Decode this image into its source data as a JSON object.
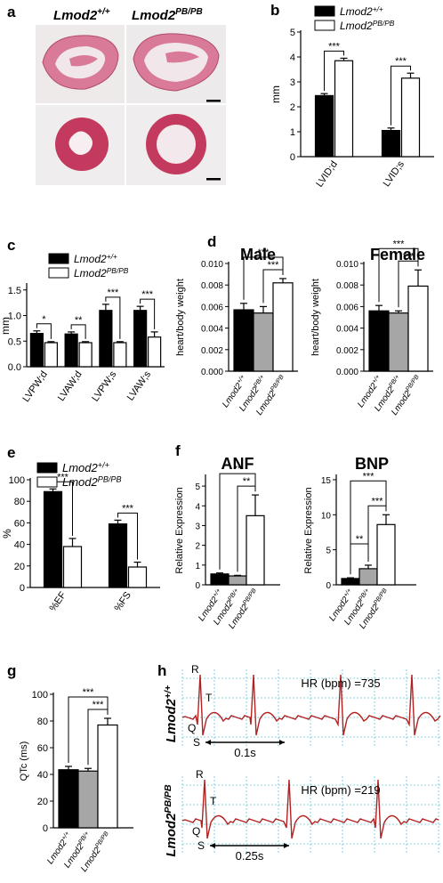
{
  "figure": {
    "panel_labels": [
      "a",
      "b",
      "c",
      "d",
      "e",
      "f",
      "g",
      "h"
    ],
    "colors": {
      "wt": "#000000",
      "het": "#a6a6a6",
      "mut": "#ffffff",
      "ecg": "#b22222",
      "grid": "#66c6d8",
      "heart_stain": "#d65a78",
      "section_stain": "#c43a5e"
    }
  },
  "panel_a": {
    "genotype_wt": "Lmod2",
    "genotype_wt_sup": "+/+",
    "genotype_mut": "Lmod2",
    "genotype_mut_sup": "PB/PB"
  },
  "chart_data": [
    {
      "panel": "b",
      "type": "bar",
      "categories": [
        "LVID;d",
        "LVID;s"
      ],
      "series": [
        {
          "name": "Lmod2+/+",
          "values": [
            2.45,
            1.05
          ],
          "errors": [
            0.08,
            0.1
          ]
        },
        {
          "name": "Lmod2PB/PB",
          "values": [
            3.85,
            3.15
          ],
          "errors": [
            0.1,
            0.2
          ]
        }
      ],
      "ylabel": "mm",
      "ylim": [
        0,
        5
      ],
      "yticks": [
        0,
        1,
        2,
        3,
        4,
        5
      ],
      "significance": [
        {
          "label": "***",
          "group": 0
        },
        {
          "label": "***",
          "group": 1
        }
      ],
      "legend_position": "top"
    },
    {
      "panel": "c",
      "type": "bar",
      "categories": [
        "LVPW;d",
        "LVAW;d",
        "LVPW;s",
        "LVAW;s"
      ],
      "series": [
        {
          "name": "Lmod2+/+",
          "values": [
            0.65,
            0.64,
            1.1,
            1.1
          ],
          "errors": [
            0.05,
            0.04,
            0.12,
            0.08
          ]
        },
        {
          "name": "Lmod2PB/PB",
          "values": [
            0.47,
            0.47,
            0.47,
            0.58
          ],
          "errors": [
            0.02,
            0.02,
            0.02,
            0.1
          ]
        }
      ],
      "ylabel": "mm",
      "ylim": [
        0,
        1.6
      ],
      "yticks": [
        0.0,
        0.5,
        1.0,
        1.5
      ],
      "significance": [
        {
          "label": "*",
          "group": 0
        },
        {
          "label": "**",
          "group": 1
        },
        {
          "label": "***",
          "group": 2
        },
        {
          "label": "***",
          "group": 3
        }
      ],
      "legend_position": "top"
    },
    {
      "panel": "d",
      "type": "bar",
      "title": "Male",
      "categories": [
        "Lmod2+/+",
        "Lmod2PB/+",
        "Lmod2PB/PB"
      ],
      "values": [
        0.0057,
        0.0054,
        0.0082
      ],
      "errors": [
        0.0006,
        0.0006,
        0.0004
      ],
      "ylabel": "heart/body weight",
      "ylim": [
        0,
        0.01
      ],
      "yticks": [
        "0.000",
        "0.002",
        "0.004",
        "0.006",
        "0.008",
        "0.010"
      ],
      "significance": [
        {
          "label": "***",
          "from": 0,
          "to": 2
        },
        {
          "label": "***",
          "from": 1,
          "to": 2
        }
      ]
    },
    {
      "panel": "d",
      "type": "bar",
      "title": "Female",
      "categories": [
        "Lmod2+/+",
        "Lmod2PB/+",
        "Lmod2PB/PB"
      ],
      "values": [
        0.0056,
        0.0054,
        0.0079
      ],
      "errors": [
        0.0005,
        0.0002,
        0.0015
      ],
      "ylabel": "heart/body weight",
      "ylim": [
        0,
        0.01
      ],
      "yticks": [
        "0.000",
        "0.002",
        "0.004",
        "0.006",
        "0.008",
        "0.010"
      ],
      "significance": [
        {
          "label": "***",
          "from": 0,
          "to": 2
        },
        {
          "label": "***",
          "from": 1,
          "to": 2
        }
      ]
    },
    {
      "panel": "e",
      "type": "bar",
      "categories": [
        "%EF",
        "%FS"
      ],
      "series": [
        {
          "name": "Lmod2+/+",
          "values": [
            89,
            59
          ],
          "errors": [
            2.5,
            3.5
          ]
        },
        {
          "name": "Lmod2PB/PB",
          "values": [
            38,
            19
          ],
          "errors": [
            7.5,
            4.5
          ]
        }
      ],
      "ylabel": "%",
      "ylim": [
        0,
        100
      ],
      "yticks": [
        0,
        20,
        40,
        60,
        80,
        100
      ],
      "significance": [
        {
          "label": "***",
          "group": 0
        },
        {
          "label": "***",
          "group": 1
        }
      ],
      "legend_position": "top"
    },
    {
      "panel": "f",
      "type": "bar",
      "title": "ANF",
      "categories": [
        "Lmod2+/+",
        "Lmod2PB/+",
        "Lmod2PB/PB"
      ],
      "values": [
        0.55,
        0.45,
        3.5
      ],
      "errors": [
        0.05,
        0.03,
        1.05
      ],
      "ylabel": "Relative Expression",
      "ylim": [
        0,
        5.5
      ],
      "yticks": [
        0,
        1,
        2,
        3,
        4,
        5
      ],
      "significance": [
        {
          "label": "**",
          "from": 0,
          "to": 2
        },
        {
          "label": "**",
          "from": 1,
          "to": 2
        }
      ]
    },
    {
      "panel": "f",
      "type": "bar",
      "title": "BNP",
      "categories": [
        "Lmod2+/+",
        "Lmod2PB/+",
        "Lmod2PB/PB"
      ],
      "values": [
        0.9,
        2.3,
        8.6
      ],
      "errors": [
        0.1,
        0.5,
        1.4
      ],
      "ylabel": "Relative Expression",
      "ylim": [
        0,
        15.5
      ],
      "yticks": [
        0,
        5,
        10,
        15
      ],
      "significance": [
        {
          "label": "**",
          "from": 0,
          "to": 1
        },
        {
          "label": "***",
          "from": 1,
          "to": 2
        },
        {
          "label": "***",
          "from": 0,
          "to": 2
        }
      ]
    },
    {
      "panel": "g",
      "type": "bar",
      "categories": [
        "Lmod2+/+",
        "Lmod2PB/+",
        "Lmod2PB/PB"
      ],
      "values": [
        43.5,
        42.5,
        77
      ],
      "errors": [
        2.5,
        2,
        5
      ],
      "ylabel": "QTc (ms)",
      "ylim": [
        0,
        100
      ],
      "yticks": [
        0,
        20,
        40,
        60,
        80,
        100
      ],
      "significance": [
        {
          "label": "***",
          "from": 0,
          "to": 2
        },
        {
          "label": "***",
          "from": 1,
          "to": 2
        }
      ]
    }
  ],
  "panel_h": {
    "traces": [
      {
        "genotype": "Lmod2",
        "genotype_sup": "+/+",
        "hr_text": "HR (bpm) =735",
        "scale_text": "0.1s",
        "wave_labels": [
          "R",
          "T",
          "Q",
          "S"
        ]
      },
      {
        "genotype": "Lmod2",
        "genotype_sup": "PB/PB",
        "hr_text": "HR (bpm) =219",
        "scale_text": "0.25s",
        "wave_labels": [
          "R",
          "T",
          "Q",
          "S"
        ]
      }
    ]
  }
}
